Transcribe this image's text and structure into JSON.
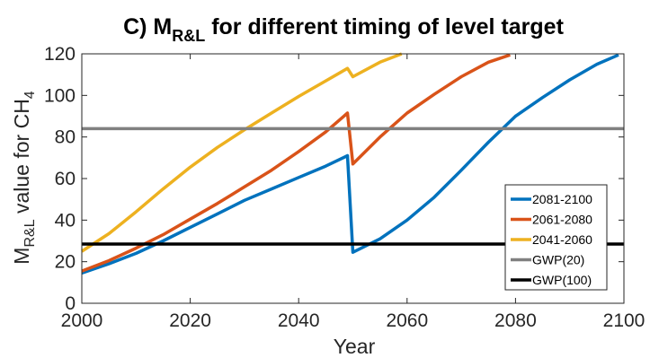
{
  "chart_data": {
    "type": "line",
    "title": {
      "prefix": "C) M",
      "subscript": "R&L",
      "suffix": " for different timing of level target"
    },
    "xlabel": "Year",
    "ylabel": {
      "prefix": "M",
      "subscript": "R&L",
      "middle": "  value for CH",
      "subscript2": "4"
    },
    "xlim": [
      2000,
      2100
    ],
    "ylim": [
      0,
      120
    ],
    "xticks": [
      2000,
      2020,
      2040,
      2060,
      2080,
      2100
    ],
    "yticks": [
      0,
      20,
      40,
      60,
      80,
      100,
      120
    ],
    "grid": false,
    "legend_position": "bottom-right",
    "series": [
      {
        "name": "2081-2100",
        "color": "#0072BD",
        "x": [
          2000,
          2005,
          2010,
          2015,
          2020,
          2025,
          2030,
          2035,
          2040,
          2045,
          2049,
          2050,
          2055,
          2060,
          2065,
          2070,
          2075,
          2080,
          2085,
          2090,
          2095,
          2099
        ],
        "y": [
          14.5,
          19,
          24,
          30,
          36.5,
          43,
          49.5,
          55,
          60.5,
          66,
          71,
          24.5,
          31,
          40,
          51,
          64,
          77.5,
          90,
          99,
          107.5,
          115,
          119.5
        ]
      },
      {
        "name": "2061-2080",
        "color": "#D95319",
        "x": [
          2000,
          2005,
          2010,
          2015,
          2020,
          2025,
          2030,
          2035,
          2040,
          2045,
          2049,
          2050,
          2055,
          2060,
          2065,
          2070,
          2075,
          2079
        ],
        "y": [
          15.5,
          20.5,
          26.5,
          33,
          40.5,
          48,
          56,
          64,
          73,
          82.5,
          91.5,
          67,
          80,
          91.5,
          100.5,
          109,
          116,
          119.5
        ]
      },
      {
        "name": "2041-2060",
        "color": "#EDB120",
        "x": [
          2000,
          2005,
          2010,
          2015,
          2020,
          2025,
          2030,
          2035,
          2040,
          2045,
          2049,
          2050,
          2055,
          2059
        ],
        "y": [
          25,
          33.5,
          44,
          55,
          65.5,
          75,
          83.5,
          91.5,
          99.5,
          107,
          113,
          109,
          116,
          120
        ]
      },
      {
        "name": "GWP(20)",
        "color": "#808080",
        "x": [
          2000,
          2100
        ],
        "y": [
          84,
          84
        ]
      },
      {
        "name": "GWP(100)",
        "color": "#000000",
        "x": [
          2000,
          2100
        ],
        "y": [
          28.5,
          28.5
        ]
      }
    ]
  }
}
